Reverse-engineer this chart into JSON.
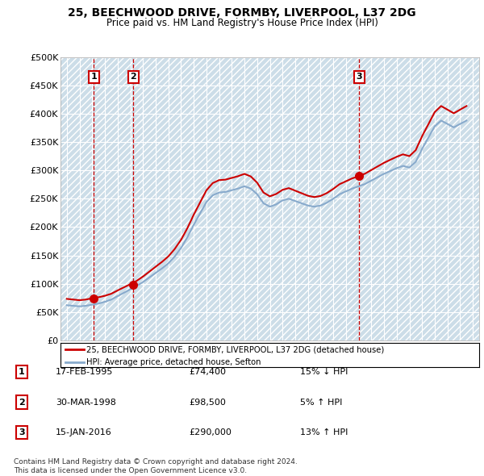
{
  "title": "25, BEECHWOOD DRIVE, FORMBY, LIVERPOOL, L37 2DG",
  "subtitle": "Price paid vs. HM Land Registry's House Price Index (HPI)",
  "ylim": [
    0,
    500000
  ],
  "yticks": [
    0,
    50000,
    100000,
    150000,
    200000,
    250000,
    300000,
    350000,
    400000,
    450000,
    500000
  ],
  "ytick_labels": [
    "£0",
    "£50K",
    "£100K",
    "£150K",
    "£200K",
    "£250K",
    "£300K",
    "£350K",
    "£400K",
    "£450K",
    "£500K"
  ],
  "xlim_start": 1992.5,
  "xlim_end": 2025.5,
  "xticks": [
    1993,
    1994,
    1995,
    1996,
    1997,
    1998,
    1999,
    2000,
    2001,
    2002,
    2003,
    2004,
    2005,
    2006,
    2007,
    2008,
    2009,
    2010,
    2011,
    2012,
    2013,
    2014,
    2015,
    2016,
    2017,
    2018,
    2019,
    2020,
    2021,
    2022,
    2023,
    2024,
    2025
  ],
  "house_color": "#cc0000",
  "hpi_color": "#88aacc",
  "grid_color": "#cccccc",
  "hatch_color": "#ccdde8",
  "purchases": [
    {
      "date_num": 1995.12,
      "price": 74400,
      "label": "1"
    },
    {
      "date_num": 1998.24,
      "price": 98500,
      "label": "2"
    },
    {
      "date_num": 2016.04,
      "price": 290000,
      "label": "3"
    }
  ],
  "legend_house": "25, BEECHWOOD DRIVE, FORMBY, LIVERPOOL, L37 2DG (detached house)",
  "legend_hpi": "HPI: Average price, detached house, Sefton",
  "footer": "Contains HM Land Registry data © Crown copyright and database right 2024.\nThis data is licensed under the Open Government Licence v3.0.",
  "table_rows": [
    [
      "1",
      "17-FEB-1995",
      "£74,400",
      "15% ↓ HPI"
    ],
    [
      "2",
      "30-MAR-1998",
      "£98,500",
      "5% ↑ HPI"
    ],
    [
      "3",
      "15-JAN-2016",
      "£290,000",
      "13% ↑ HPI"
    ]
  ]
}
